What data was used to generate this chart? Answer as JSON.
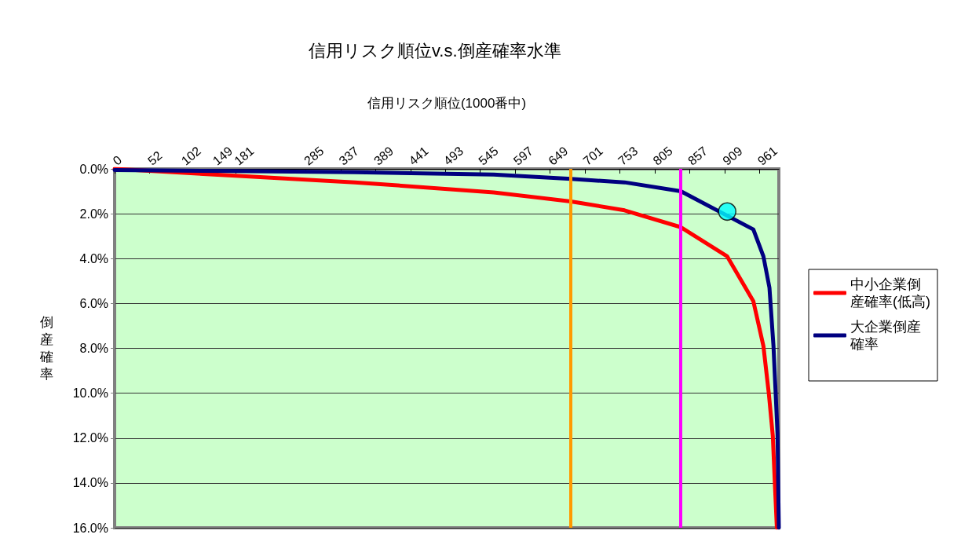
{
  "chart_data": {
    "type": "line",
    "title": "信用リスク順位v.s.倒産確率水準",
    "xlabel": "信用リスク順位(1000番中)",
    "ylabel": "倒産確率",
    "xlim": [
      0,
      990
    ],
    "xticks": [
      0,
      52,
      102,
      149,
      181,
      285,
      337,
      389,
      441,
      493,
      545,
      597,
      649,
      701,
      753,
      805,
      857,
      909,
      961
    ],
    "ylim": [
      16,
      0
    ],
    "yticks": [
      {
        "value": 0,
        "label": "0.0%"
      },
      {
        "value": 2,
        "label": "2.0%"
      },
      {
        "value": 4,
        "label": "4.0%"
      },
      {
        "value": 6,
        "label": "6.0%"
      },
      {
        "value": 8,
        "label": "8.0%"
      },
      {
        "value": 10,
        "label": "10.0%"
      },
      {
        "value": 12,
        "label": "12.0%"
      },
      {
        "value": 14,
        "label": "14.0%"
      },
      {
        "value": 16,
        "label": "16.0%"
      }
    ],
    "grid": "y",
    "legend": "right",
    "marker": "none",
    "line_style": "solid",
    "series": [
      {
        "name": "中小企業倒産確率(低高)",
        "color": "#ff0000",
        "x": [
          0,
          175,
          358,
          565,
          680,
          760,
          844,
          913,
          952,
          967,
          975,
          981,
          984,
          987
        ],
        "values": [
          0,
          0.3,
          0.6,
          1.05,
          1.45,
          1.85,
          2.6,
          3.9,
          5.9,
          7.9,
          10,
          11.9,
          14,
          16
        ]
      },
      {
        "name": "大企業倒産確率",
        "color": "#000080",
        "x": [
          0,
          175,
          358,
          565,
          680,
          760,
          844,
          952,
          967,
          976,
          982,
          988,
          990
        ],
        "values": [
          0.05,
          0.1,
          0.15,
          0.25,
          0.45,
          0.6,
          1.0,
          2.7,
          3.9,
          5.3,
          7.9,
          11.8,
          16
        ]
      },
      {
        "type": "scatter",
        "color": "#00ffff",
        "marker": "circle",
        "x": [
          913
        ],
        "values": [
          1.9
        ]
      }
    ],
    "ref_lines": [
      {
        "axis": "x",
        "value": 680,
        "color": "#ff9900"
      },
      {
        "axis": "x",
        "value": 844,
        "color": "#ff00ff"
      }
    ]
  }
}
